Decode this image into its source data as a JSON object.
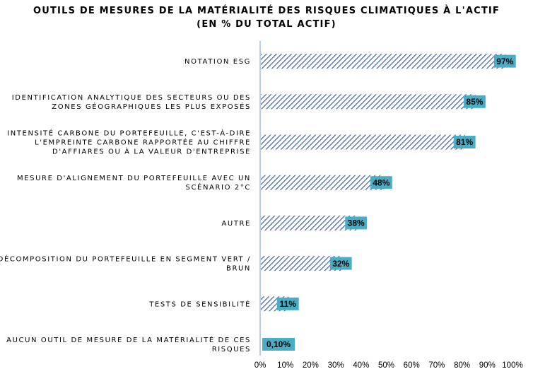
{
  "chart_data": {
    "type": "bar",
    "orientation": "horizontal",
    "title": "OUTILS DE MESURES DE LA MATÉRIALITÉ DES RISQUES CLIMATIQUES À L'ACTIF",
    "subtitle": "(EN % DU TOTAL ACTIF)",
    "categories": [
      [
        "NOTATION ESG"
      ],
      [
        "IDENTIFICATION ANALYTIQUE DES SECTEURS OU DES",
        "ZONES GÉOGRAPHIQUES LES PLUS EXPOSÉS"
      ],
      [
        "INTENSITÉ CARBONE DU PORTEFEUILLE, C'EST-À-DIRE",
        "L'EMPREINTE CARBONE RAPPORTÉE AU CHIFFRE",
        "D'AFFIARES OU À LA VALEUR D'ENTREPRISE"
      ],
      [
        "MESURE D'ALIGNEMENT DU PORTEFEUILLE AVEC UN",
        "SCÉNARIO 2°C"
      ],
      [
        "AUTRE"
      ],
      [
        "DÉCOMPOSITION DU PORTEFEUILLE EN SEGMENT VERT /",
        "BRUN"
      ],
      [
        "TESTS DE SENSIBILITÉ"
      ],
      [
        "AUCUN OUTIL DE MESURE DE LA MATÉRIALITÉ DE CES",
        "RISQUES"
      ]
    ],
    "values": [
      97,
      85,
      81,
      48,
      38,
      32,
      11,
      0.1
    ],
    "data_labels": [
      "97%",
      "85%",
      "81%",
      "48%",
      "38%",
      "32%",
      "11%",
      "0,10%"
    ],
    "xlim": [
      0,
      100
    ],
    "xticks": [
      "0%",
      "10%",
      "20%",
      "30%",
      "40%",
      "50%",
      "60%",
      "70%",
      "80%",
      "90%",
      "100%"
    ],
    "grid": false,
    "legend": "none",
    "colors": {
      "bar_hatch": "#2f5597",
      "label_box": "#4bacc6",
      "axis": "#8eaadb"
    }
  }
}
